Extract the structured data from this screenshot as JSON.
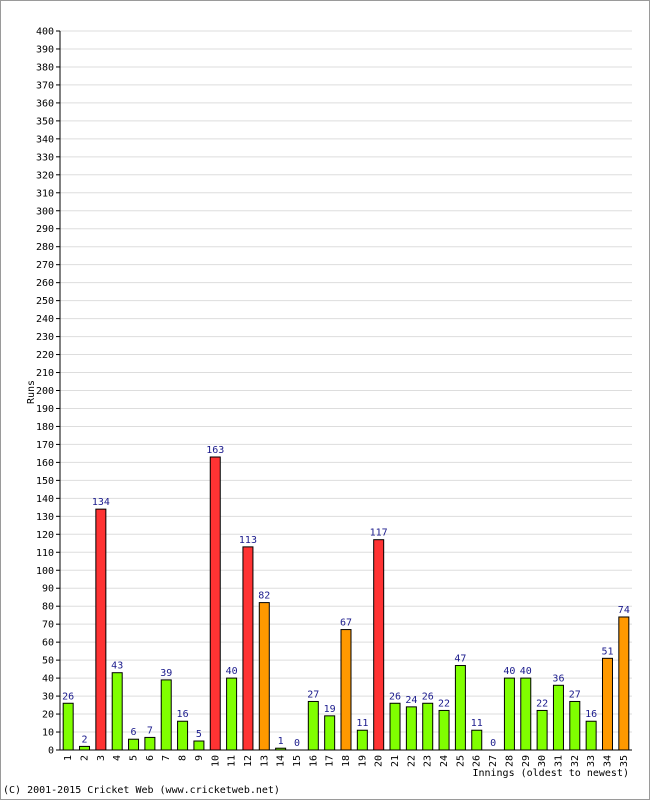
{
  "chart_data": {
    "type": "bar",
    "title": "",
    "xlabel": "Innings (oldest to newest)",
    "ylabel": "Runs",
    "ylim": [
      0,
      400
    ],
    "ytick_step": 10,
    "grid": true,
    "categories": [
      "1",
      "2",
      "3",
      "4",
      "5",
      "6",
      "7",
      "8",
      "9",
      "10",
      "11",
      "12",
      "13",
      "14",
      "15",
      "16",
      "17",
      "18",
      "19",
      "20",
      "21",
      "22",
      "23",
      "24",
      "25",
      "26",
      "27",
      "28",
      "29",
      "30",
      "31",
      "32",
      "33",
      "34",
      "35"
    ],
    "values": [
      26,
      2,
      134,
      43,
      6,
      7,
      39,
      16,
      5,
      163,
      40,
      113,
      82,
      1,
      0,
      27,
      19,
      67,
      11,
      117,
      26,
      24,
      26,
      22,
      47,
      11,
      0,
      40,
      40,
      22,
      36,
      27,
      16,
      51,
      74
    ],
    "value_labels": [
      "26",
      "2",
      "134",
      "43",
      "6",
      "7",
      "39",
      "16",
      "5",
      "163",
      "40",
      "113",
      "82",
      "1",
      "0",
      "27",
      "19",
      "67",
      "11",
      "117",
      "26",
      "24",
      "26",
      "22",
      "47",
      "11",
      "0",
      "40",
      "40",
      "22",
      "36",
      "27",
      "16",
      "51",
      "74"
    ],
    "bar_colors": [
      "#80ff00",
      "#80ff00",
      "#ff3333",
      "#80ff00",
      "#80ff00",
      "#80ff00",
      "#80ff00",
      "#80ff00",
      "#80ff00",
      "#ff3333",
      "#80ff00",
      "#ff3333",
      "#ff9900",
      "#80ff00",
      "#80ff00",
      "#80ff00",
      "#80ff00",
      "#ff9900",
      "#80ff00",
      "#ff3333",
      "#80ff00",
      "#80ff00",
      "#80ff00",
      "#80ff00",
      "#80ff00",
      "#80ff00",
      "#80ff00",
      "#80ff00",
      "#80ff00",
      "#80ff00",
      "#80ff00",
      "#80ff00",
      "#80ff00",
      "#ff9900",
      "#ff9900"
    ],
    "colors": {
      "green": "#80ff00",
      "orange": "#ff9900",
      "red": "#ff3333",
      "grid": "#dddddd",
      "value_label": "#1a1a8c"
    }
  },
  "footer": {
    "copyright": "(C) 2001-2015 Cricket Web (www.cricketweb.net)"
  }
}
